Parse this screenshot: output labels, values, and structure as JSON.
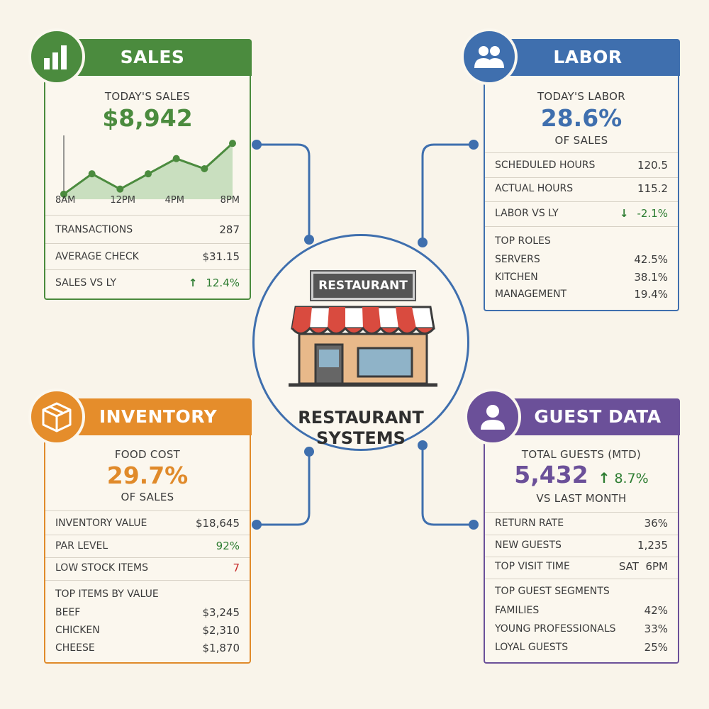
{
  "colors": {
    "sales": "#4b8b3e",
    "labor": "#3f6fae",
    "inventory": "#e58d2b",
    "guest": "#6b5099",
    "up": "#2e7d32",
    "down": "#2e7d32",
    "alert": "#c62828"
  },
  "center": {
    "sign": "RESTAURANT",
    "title_line1": "RESTAURANT",
    "title_line2": "SYSTEMS",
    "icon": "storefront-icon"
  },
  "sales": {
    "title": "SALES",
    "icon": "bar-chart-icon",
    "kpi_label": "TODAY'S SALES",
    "kpi_value": "$8,942",
    "rows": [
      {
        "label": "TRANSACTIONS",
        "value": "287"
      },
      {
        "label": "AVERAGE CHECK",
        "value": "$31.15"
      },
      {
        "label": "SALES VS LY",
        "value": "12.4%",
        "trend": "up"
      }
    ]
  },
  "chart_data": {
    "type": "area",
    "x": [
      "8AM",
      "10AM",
      "12PM",
      "2PM",
      "4PM",
      "6PM",
      "8PM"
    ],
    "tick_labels": [
      "8AM",
      "12PM",
      "4PM",
      "8PM"
    ],
    "values": [
      1,
      5,
      2,
      5,
      8,
      6,
      11
    ],
    "ylim": [
      0,
      12
    ],
    "title": "",
    "xlabel": "",
    "ylabel": "",
    "grid": false
  },
  "labor": {
    "title": "LABOR",
    "icon": "users-icon",
    "kpi_label": "TODAY'S LABOR",
    "kpi_value": "28.6%",
    "kpi_sub": "OF SALES",
    "rows": [
      {
        "label": "SCHEDULED HOURS",
        "value": "120.5"
      },
      {
        "label": "ACTUAL HOURS",
        "value": "115.2"
      },
      {
        "label": "LABOR VS LY",
        "value": "-2.1%",
        "trend": "down"
      }
    ],
    "roles_title": "TOP ROLES",
    "roles": [
      {
        "label": "SERVERS",
        "value": "42.5%"
      },
      {
        "label": "KITCHEN",
        "value": "38.1%"
      },
      {
        "label": "MANAGEMENT",
        "value": "19.4%"
      }
    ]
  },
  "inventory": {
    "title": "INVENTORY",
    "icon": "box-icon",
    "kpi_label": "FOOD COST",
    "kpi_value": "29.7%",
    "kpi_sub": "OF SALES",
    "rows": [
      {
        "label": "INVENTORY VALUE",
        "value": "$18,645"
      },
      {
        "label": "PAR LEVEL",
        "value": "92%"
      },
      {
        "label": "LOW STOCK ITEMS",
        "value": "7"
      }
    ],
    "items_title": "TOP ITEMS BY VALUE",
    "items": [
      {
        "label": "BEEF",
        "value": "$3,245"
      },
      {
        "label": "CHICKEN",
        "value": "$2,310"
      },
      {
        "label": "CHEESE",
        "value": "$1,870"
      }
    ]
  },
  "guest": {
    "title": "GUEST DATA",
    "icon": "person-icon",
    "kpi_label": "TOTAL GUESTS (MTD)",
    "kpi_value": "5,432",
    "kpi_change": "8.7%",
    "kpi_sub": "VS LAST MONTH",
    "rows": [
      {
        "label": "RETURN RATE",
        "value": "36%"
      },
      {
        "label": "NEW GUESTS",
        "value": "1,235"
      },
      {
        "label": "TOP VISIT TIME",
        "value": "SAT  6PM"
      }
    ],
    "segments_title": "TOP GUEST SEGMENTS",
    "segments": [
      {
        "label": "FAMILIES",
        "value": "42%"
      },
      {
        "label": "YOUNG PROFESSIONALS",
        "value": "33%"
      },
      {
        "label": "LOYAL GUESTS",
        "value": "25%"
      }
    ]
  }
}
